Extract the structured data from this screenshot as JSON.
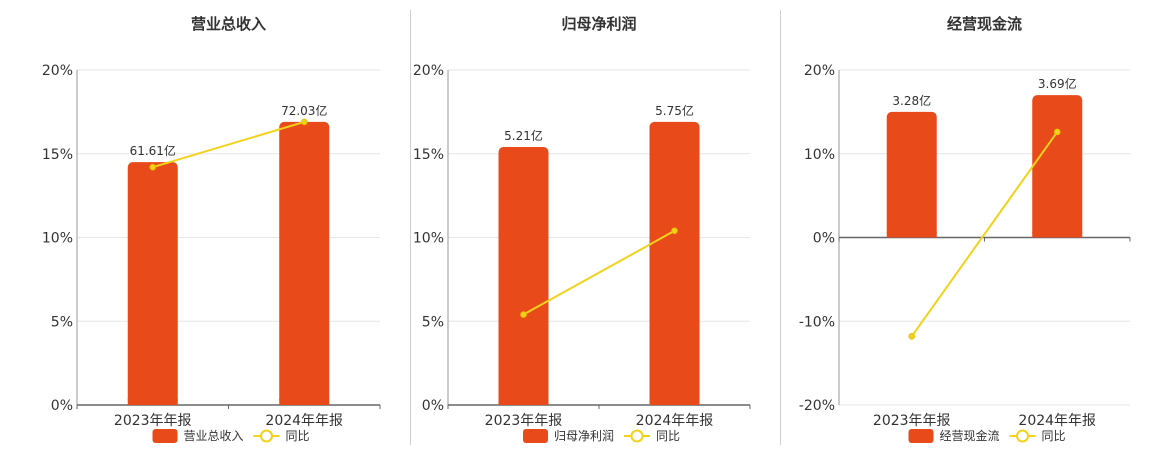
{
  "colors": {
    "bar": "#E84A1A",
    "line": "#F2D21B",
    "axis": "#666666",
    "grid": "#e6e6e6",
    "text": "#333333"
  },
  "chart_data": [
    {
      "type": "bar",
      "title": "营业总收入",
      "categories": [
        "2023年年报",
        "2024年年报"
      ],
      "series": [
        {
          "name": "营业总收入",
          "kind": "bar",
          "values": [
            14.5,
            16.9
          ],
          "labels": [
            "61.61亿",
            "72.03亿"
          ]
        },
        {
          "name": "同比",
          "kind": "line",
          "values": [
            14.2,
            16.9
          ]
        }
      ],
      "y_ticks": [
        "20%",
        "15%",
        "10%",
        "5%",
        "0%"
      ],
      "ylim": [
        0,
        20
      ],
      "grid": true,
      "legend": "bottom"
    },
    {
      "type": "bar",
      "title": "归母净利润",
      "categories": [
        "2023年年报",
        "2024年年报"
      ],
      "series": [
        {
          "name": "归母净利润",
          "kind": "bar",
          "values": [
            15.4,
            16.9
          ],
          "labels": [
            "5.21亿",
            "5.75亿"
          ]
        },
        {
          "name": "同比",
          "kind": "line",
          "values": [
            5.4,
            10.4
          ]
        }
      ],
      "y_ticks": [
        "20%",
        "15%",
        "10%",
        "5%",
        "0%"
      ],
      "ylim": [
        0,
        20
      ],
      "grid": true,
      "legend": "bottom"
    },
    {
      "type": "bar",
      "title": "经营现金流",
      "categories": [
        "2023年年报",
        "2024年年报"
      ],
      "series": [
        {
          "name": "经营现金流",
          "kind": "bar",
          "values": [
            15.0,
            17.0
          ],
          "labels": [
            "3.28亿",
            "3.69亿"
          ]
        },
        {
          "name": "同比",
          "kind": "line",
          "values": [
            -11.8,
            12.6
          ]
        }
      ],
      "y_ticks": [
        "20%",
        "10%",
        "0%",
        "-10%",
        "-20%"
      ],
      "ylim": [
        -20,
        20
      ],
      "grid": true,
      "legend": "bottom"
    }
  ]
}
